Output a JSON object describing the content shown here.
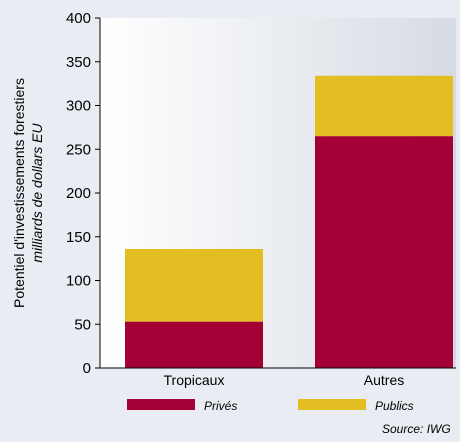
{
  "chart_data": {
    "type": "bar",
    "stacked": true,
    "categories": [
      "Tropicaux",
      "Autres"
    ],
    "series": [
      {
        "name": "Privés",
        "values": [
          53,
          265
        ],
        "color": "#a30035"
      },
      {
        "name": "Publics",
        "values": [
          83,
          69
        ],
        "color": "#e3be22"
      }
    ],
    "ylabel": "Potentiel d'investissements forestiers",
    "ylabel_sub": "milliards de dollars EU",
    "ylim": [
      0,
      400
    ],
    "yticks": [
      "0",
      "50",
      "100",
      "150",
      "200",
      "250",
      "300",
      "350",
      "400"
    ],
    "grid": false,
    "legend_position": "bottom",
    "source": "Source: IWG"
  },
  "colors": {
    "page_background": "#e9edf3",
    "plot_background": "#ffffff",
    "plot_shade": "#d6dbe3",
    "axis": "#000000"
  }
}
